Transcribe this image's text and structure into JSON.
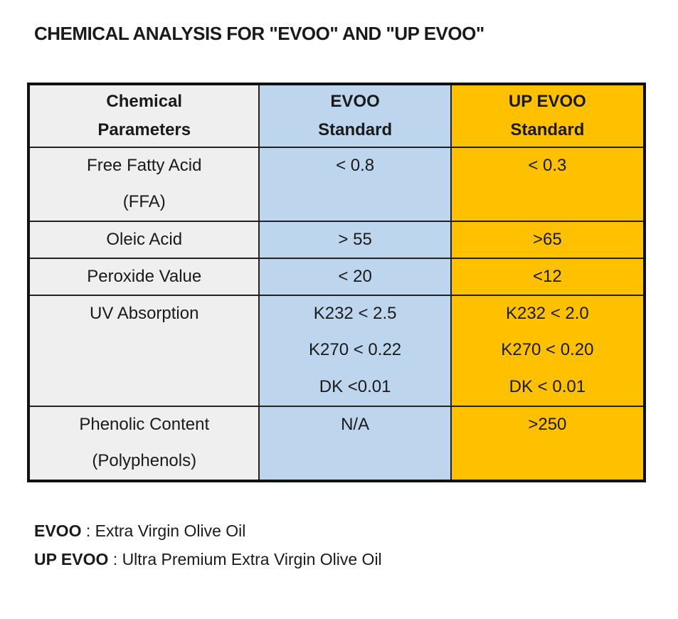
{
  "title": "CHEMICAL ANALYSIS FOR \"EVOO\" AND \"UP EVOO\"",
  "table": {
    "headers": {
      "param_line1": "Chemical",
      "param_line2": "Parameters",
      "evoo_line1": "EVOO",
      "evoo_line2": "Standard",
      "up_line1": "UP EVOO",
      "up_line2": "Standard"
    },
    "rows": [
      {
        "param": [
          "Free Fatty Acid",
          "(FFA)"
        ],
        "evoo": [
          "< 0.8"
        ],
        "up": [
          "< 0.3"
        ]
      },
      {
        "param": [
          "Oleic Acid"
        ],
        "evoo": [
          "> 55"
        ],
        "up": [
          ">65"
        ]
      },
      {
        "param": [
          "Peroxide Value"
        ],
        "evoo": [
          "< 20"
        ],
        "up": [
          "<12"
        ]
      },
      {
        "param": [
          "UV Absorption"
        ],
        "evoo": [
          "K232 < 2.5",
          "K270 < 0.22",
          "DK <0.01"
        ],
        "up": [
          "K232 < 2.0",
          "K270 < 0.20",
          "DK < 0.01"
        ]
      },
      {
        "param": [
          "Phenolic Content",
          "(Polyphenols)"
        ],
        "evoo": [
          "N/A"
        ],
        "up": [
          ">250"
        ]
      }
    ]
  },
  "legend": [
    {
      "abbr": "EVOO",
      "sep": " : ",
      "definition": "Extra Virgin Olive Oil"
    },
    {
      "abbr": "UP EVOO",
      "sep": " : ",
      "definition": "Ultra Premium Extra Virgin Olive Oil"
    }
  ],
  "colors": {
    "param_bg": "#efefef",
    "evoo_bg": "#bdd6ee",
    "up_bg": "#ffc000",
    "border": "#111111"
  }
}
